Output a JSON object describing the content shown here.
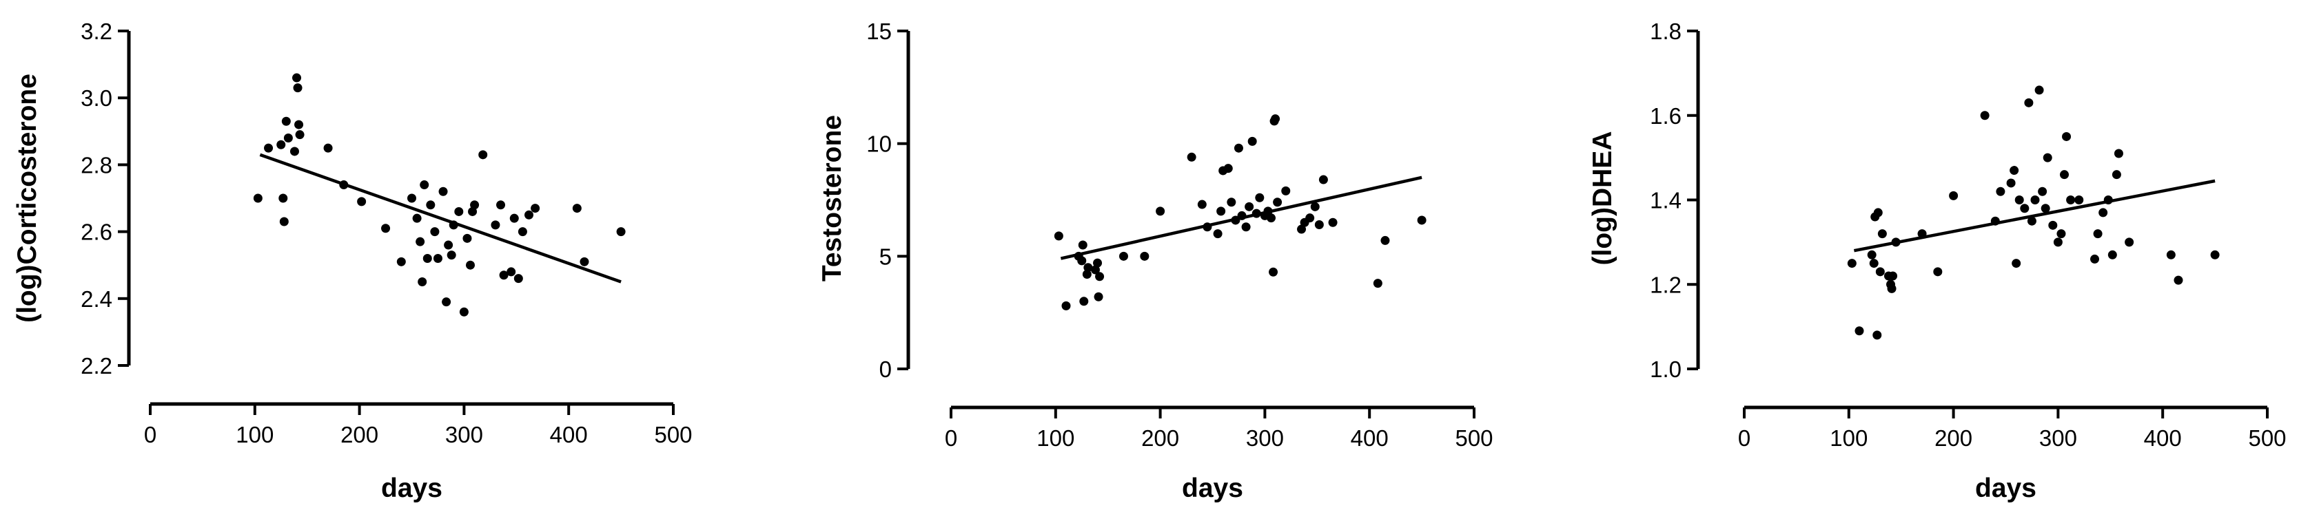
{
  "chart_data": [
    {
      "type": "scatter",
      "title": "",
      "xlabel": "days",
      "ylabel": "(log)Corticosterone",
      "xlim": [
        0,
        500
      ],
      "ylim": [
        2.2,
        3.2
      ],
      "xticks": [
        "0",
        "100",
        "200",
        "300",
        "400",
        "500"
      ],
      "yticks": [
        "2.2",
        "2.4",
        "2.6",
        "2.8",
        "3.0",
        "3.2"
      ],
      "grid": false,
      "trendline": {
        "x": [
          105,
          450
        ],
        "y": [
          2.83,
          2.45
        ]
      },
      "points": [
        [
          103,
          2.7
        ],
        [
          113,
          2.85
        ],
        [
          125,
          2.86
        ],
        [
          127,
          2.7
        ],
        [
          128,
          2.63
        ],
        [
          130,
          2.93
        ],
        [
          132,
          2.88
        ],
        [
          138,
          2.84
        ],
        [
          140,
          3.06
        ],
        [
          141,
          3.03
        ],
        [
          142,
          2.92
        ],
        [
          143,
          2.89
        ],
        [
          170,
          2.85
        ],
        [
          185,
          2.74
        ],
        [
          202,
          2.69
        ],
        [
          225,
          2.61
        ],
        [
          240,
          2.51
        ],
        [
          250,
          2.7
        ],
        [
          255,
          2.64
        ],
        [
          258,
          2.57
        ],
        [
          260,
          2.45
        ],
        [
          262,
          2.74
        ],
        [
          265,
          2.52
        ],
        [
          268,
          2.68
        ],
        [
          272,
          2.6
        ],
        [
          275,
          2.52
        ],
        [
          280,
          2.72
        ],
        [
          283,
          2.39
        ],
        [
          285,
          2.56
        ],
        [
          288,
          2.53
        ],
        [
          290,
          2.62
        ],
        [
          295,
          2.66
        ],
        [
          300,
          2.36
        ],
        [
          303,
          2.58
        ],
        [
          306,
          2.5
        ],
        [
          308,
          2.66
        ],
        [
          310,
          2.68
        ],
        [
          318,
          2.83
        ],
        [
          330,
          2.62
        ],
        [
          335,
          2.68
        ],
        [
          338,
          2.47
        ],
        [
          345,
          2.48
        ],
        [
          348,
          2.64
        ],
        [
          352,
          2.46
        ],
        [
          356,
          2.6
        ],
        [
          362,
          2.65
        ],
        [
          368,
          2.67
        ],
        [
          408,
          2.67
        ],
        [
          415,
          2.51
        ],
        [
          450,
          2.6
        ]
      ]
    },
    {
      "type": "scatter",
      "title": "",
      "xlabel": "days",
      "ylabel": "Testosterone",
      "xlim": [
        0,
        500
      ],
      "ylim": [
        0,
        15
      ],
      "xticks": [
        "0",
        "100",
        "200",
        "300",
        "400",
        "500"
      ],
      "yticks": [
        "0",
        "5",
        "10",
        "15"
      ],
      "grid": false,
      "trendline": {
        "x": [
          105,
          450
        ],
        "y": [
          4.9,
          8.5
        ]
      },
      "points": [
        [
          103,
          5.9
        ],
        [
          110,
          2.8
        ],
        [
          122,
          5.0
        ],
        [
          125,
          4.8
        ],
        [
          126,
          5.5
        ],
        [
          127,
          3.0
        ],
        [
          130,
          4.2
        ],
        [
          131,
          4.5
        ],
        [
          138,
          4.4
        ],
        [
          140,
          4.7
        ],
        [
          141,
          3.2
        ],
        [
          142,
          4.1
        ],
        [
          165,
          5.0
        ],
        [
          185,
          5.0
        ],
        [
          200,
          7.0
        ],
        [
          230,
          9.4
        ],
        [
          240,
          7.3
        ],
        [
          245,
          6.3
        ],
        [
          255,
          6.0
        ],
        [
          258,
          7.0
        ],
        [
          260,
          8.8
        ],
        [
          265,
          8.9
        ],
        [
          268,
          7.4
        ],
        [
          272,
          6.6
        ],
        [
          275,
          9.8
        ],
        [
          278,
          6.8
        ],
        [
          282,
          6.3
        ],
        [
          285,
          7.2
        ],
        [
          288,
          10.1
        ],
        [
          292,
          6.9
        ],
        [
          295,
          7.6
        ],
        [
          300,
          6.8
        ],
        [
          303,
          7.0
        ],
        [
          306,
          6.7
        ],
        [
          308,
          4.3
        ],
        [
          309,
          11.0
        ],
        [
          310,
          11.1
        ],
        [
          312,
          7.4
        ],
        [
          320,
          7.9
        ],
        [
          335,
          6.2
        ],
        [
          338,
          6.5
        ],
        [
          343,
          6.7
        ],
        [
          348,
          7.2
        ],
        [
          352,
          6.4
        ],
        [
          356,
          8.4
        ],
        [
          365,
          6.5
        ],
        [
          408,
          3.8
        ],
        [
          415,
          5.7
        ],
        [
          450,
          6.6
        ]
      ]
    },
    {
      "type": "scatter",
      "title": "",
      "xlabel": "days",
      "ylabel": "(log)DHEA",
      "xlim": [
        0,
        500
      ],
      "ylim": [
        1.0,
        1.8
      ],
      "xticks": [
        "0",
        "100",
        "200",
        "300",
        "400",
        "500"
      ],
      "yticks": [
        "1.0",
        "1.2",
        "1.4",
        "1.6",
        "1.8"
      ],
      "grid": false,
      "trendline": {
        "x": [
          105,
          450
        ],
        "y": [
          1.28,
          1.445
        ]
      },
      "points": [
        [
          103,
          1.25
        ],
        [
          110,
          1.09
        ],
        [
          122,
          1.27
        ],
        [
          124,
          1.25
        ],
        [
          125,
          1.36
        ],
        [
          127,
          1.08
        ],
        [
          128,
          1.37
        ],
        [
          130,
          1.23
        ],
        [
          132,
          1.32
        ],
        [
          138,
          1.22
        ],
        [
          140,
          1.2
        ],
        [
          141,
          1.19
        ],
        [
          142,
          1.22
        ],
        [
          145,
          1.3
        ],
        [
          170,
          1.32
        ],
        [
          185,
          1.23
        ],
        [
          200,
          1.41
        ],
        [
          230,
          1.6
        ],
        [
          240,
          1.35
        ],
        [
          245,
          1.42
        ],
        [
          255,
          1.44
        ],
        [
          258,
          1.47
        ],
        [
          260,
          1.25
        ],
        [
          263,
          1.4
        ],
        [
          268,
          1.38
        ],
        [
          272,
          1.63
        ],
        [
          275,
          1.35
        ],
        [
          278,
          1.4
        ],
        [
          282,
          1.66
        ],
        [
          285,
          1.42
        ],
        [
          288,
          1.38
        ],
        [
          290,
          1.5
        ],
        [
          295,
          1.34
        ],
        [
          300,
          1.3
        ],
        [
          303,
          1.32
        ],
        [
          306,
          1.46
        ],
        [
          308,
          1.55
        ],
        [
          312,
          1.4
        ],
        [
          320,
          1.4
        ],
        [
          335,
          1.26
        ],
        [
          338,
          1.32
        ],
        [
          343,
          1.37
        ],
        [
          348,
          1.4
        ],
        [
          352,
          1.27
        ],
        [
          356,
          1.46
        ],
        [
          358,
          1.51
        ],
        [
          368,
          1.3
        ],
        [
          408,
          1.27
        ],
        [
          415,
          1.21
        ],
        [
          450,
          1.27
        ]
      ]
    }
  ]
}
